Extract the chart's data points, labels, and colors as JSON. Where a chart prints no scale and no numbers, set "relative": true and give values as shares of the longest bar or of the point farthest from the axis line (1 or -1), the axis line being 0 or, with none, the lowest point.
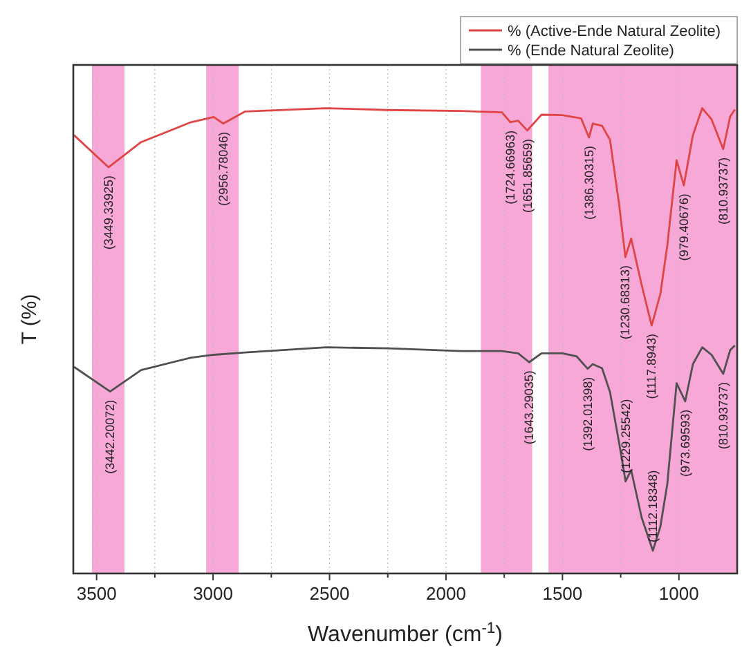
{
  "chart_data": {
    "type": "line",
    "relative": true,
    "xlabel": "Wavenumber (cm$^{-1}$)",
    "ylabel": "T (%)",
    "legend": "top right",
    "grid": "x",
    "xlim": [
      3600,
      750
    ],
    "xticks": [
      3500,
      {
        "value": 3250,
        "label": null
      },
      3000,
      {
        "value": 2750,
        "label": null
      },
      2500,
      {
        "value": 2250,
        "label": null
      },
      2000,
      {
        "value": 1750,
        "label": null
      },
      1500,
      {
        "value": 1250,
        "label": null
      },
      1000
    ],
    "bands": [
      {
        "axis": "x",
        "from": 3520,
        "to": 3380,
        "color": "#f7a8d6"
      },
      {
        "axis": "x",
        "from": 3030,
        "to": 2890,
        "color": "#f7a8d6"
      },
      {
        "axis": "x",
        "from": 1850,
        "to": 1630,
        "color": "#f7a8d6"
      },
      {
        "axis": "x",
        "from": 1560,
        "to": 750,
        "color": "#f7a8d6"
      }
    ],
    "series": [
      {
        "name": "% (Active-Ende Natural Zeolite)",
        "color": "#e04545",
        "x": [
          3597,
          3449,
          3309,
          3094,
          2997,
          2956,
          2862,
          2514,
          2250,
          1934,
          1760,
          1724,
          1690,
          1651,
          1590,
          1500,
          1420,
          1386,
          1370,
          1330,
          1296,
          1257,
          1230,
          1205,
          1160,
          1117,
          1080,
          1050,
          1010,
          979,
          940,
          900,
          860,
          810,
          780,
          760
        ],
        "values": [
          0.942,
          0.873,
          0.927,
          0.97,
          0.981,
          0.967,
          0.993,
          1.0,
          0.996,
          0.994,
          0.991,
          0.97,
          0.973,
          0.952,
          0.986,
          0.985,
          0.978,
          0.937,
          0.967,
          0.962,
          0.932,
          0.794,
          0.68,
          0.72,
          0.62,
          0.533,
          0.6,
          0.705,
          0.888,
          0.834,
          0.942,
          1.0,
          0.976,
          0.912,
          0.982,
          0.997
        ]
      },
      {
        "name": "% (Ende Natural Zeolite)",
        "color": "#505050",
        "x": [
          3597,
          3442,
          3309,
          3094,
          2997,
          2862,
          2514,
          2250,
          1934,
          1760,
          1690,
          1643,
          1590,
          1500,
          1440,
          1392,
          1370,
          1330,
          1296,
          1257,
          1229,
          1205,
          1160,
          1112,
          1080,
          1050,
          1010,
          973,
          940,
          900,
          860,
          810,
          780,
          760
        ],
        "values": [
          0.444,
          0.391,
          0.437,
          0.464,
          0.47,
          0.475,
          0.486,
          0.484,
          0.478,
          0.478,
          0.473,
          0.454,
          0.473,
          0.473,
          0.467,
          0.44,
          0.45,
          0.441,
          0.39,
          0.281,
          0.198,
          0.222,
          0.12,
          0.049,
          0.1,
          0.192,
          0.409,
          0.37,
          0.45,
          0.486,
          0.47,
          0.429,
          0.48,
          0.49
        ]
      }
    ],
    "annotations": [
      {
        "text": "(3449.33925)",
        "x": 3449.33925,
        "y": 0.873
      },
      {
        "text": "(2956.78046)",
        "x": 2956.78046,
        "y": 0.967
      },
      {
        "text": "(1724.66963)",
        "x": 1724.66963,
        "y": 0.97
      },
      {
        "text": "(1651.85659)",
        "x": 1651.85659,
        "y": 0.952
      },
      {
        "text": "(1386.30315)",
        "x": 1386.30315,
        "y": 0.937
      },
      {
        "text": "(1230.68313)",
        "x": 1230.68313,
        "y": 0.68
      },
      {
        "text": "(1117.8943)",
        "x": 1117.8943,
        "y": 0.533
      },
      {
        "text": "(979.40676)",
        "x": 979.40676,
        "y": 0.834
      },
      {
        "text": "(810.93737)",
        "x": 810.93737,
        "y": 0.912
      },
      {
        "text": "(3442.20072)",
        "x": 3442.20072,
        "y": 0.391
      },
      {
        "text": "(1643.29035)",
        "x": 1643.29035,
        "y": 0.454
      },
      {
        "text": "(1392.01398)",
        "x": 1392.01398,
        "y": 0.44
      },
      {
        "text": "(1229.25542)",
        "x": 1229.25542,
        "y": 0.198
      },
      {
        "text": "(1112.18348)",
        "x": 1112.18348,
        "y": 0.049
      },
      {
        "text": "(973.69593)",
        "x": 973.69593,
        "y": 0.37
      },
      {
        "text": "(810.93737)",
        "x": 810.93737,
        "y": 0.429
      }
    ]
  }
}
